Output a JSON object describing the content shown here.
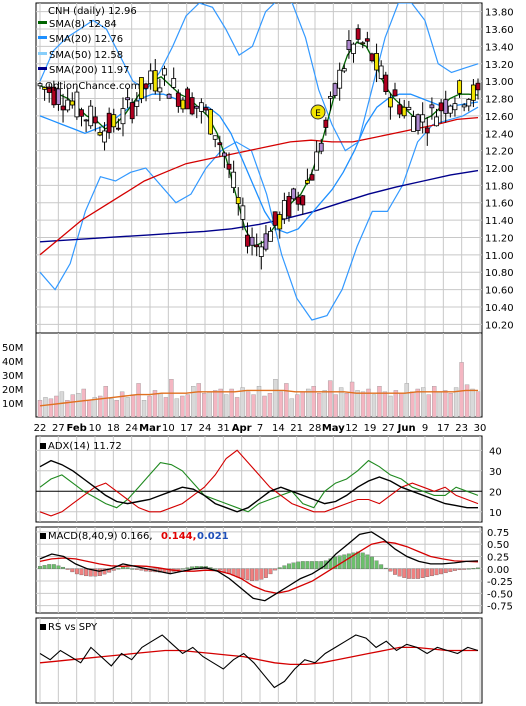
{
  "chart_data": [
    {
      "type": "candlestick",
      "title": "CNH (daily) 12.96",
      "watermark": "OptionChance.com",
      "legend": [
        {
          "label": "SMA(8) 12.84",
          "color": "#006400"
        },
        {
          "label": "SMA(20) 12.76",
          "color": "#1e90ff"
        },
        {
          "label": "SMA(50) 12.58",
          "color": "#87cefa"
        },
        {
          "label": "SMA(200) 11.97",
          "color": "#00008b"
        }
      ],
      "y_ticks": [
        "13.80",
        "13.60",
        "13.40",
        "13.20",
        "13.00",
        "12.80",
        "12.60",
        "12.40",
        "12.20",
        "12.00",
        "11.80",
        "11.60",
        "11.40",
        "11.20",
        "11.00",
        "10.80",
        "10.60",
        "10.40",
        "10.20"
      ],
      "ylim": [
        10.1,
        13.9
      ],
      "earnings_marker": "E",
      "sma8": [
        12.95,
        12.9,
        12.85,
        12.8,
        12.7,
        12.6,
        12.55,
        12.45,
        12.5,
        12.6,
        12.75,
        12.9,
        13.0,
        13.05,
        12.95,
        12.85,
        12.8,
        12.7,
        12.6,
        12.4,
        12.1,
        11.7,
        11.3,
        11.1,
        11.15,
        11.3,
        11.45,
        11.6,
        11.7,
        11.9,
        12.2,
        12.6,
        13.0,
        13.3,
        13.45,
        13.4,
        13.2,
        12.95,
        12.8,
        12.7,
        12.6,
        12.55,
        12.6,
        12.7,
        12.8,
        12.85,
        12.85,
        12.84
      ],
      "sma20": [
        12.6,
        12.55,
        12.5,
        12.45,
        12.4,
        12.45,
        12.5,
        12.6,
        12.7,
        12.8,
        12.85,
        12.85,
        12.8,
        12.75,
        12.7,
        12.7,
        12.6,
        12.4,
        12.1,
        11.8,
        11.5,
        11.3,
        11.25,
        11.3,
        11.45,
        11.6,
        11.75,
        11.95,
        12.2,
        12.5,
        12.7,
        12.8,
        12.85,
        12.85,
        12.8,
        12.75,
        12.7,
        12.72,
        12.74,
        12.76
      ],
      "sma50": [
        11.0,
        11.2,
        11.4,
        11.55,
        11.7,
        11.85,
        11.95,
        12.05,
        12.1,
        12.15,
        12.2,
        12.25,
        12.3,
        12.32,
        12.3,
        12.3,
        12.35,
        12.4,
        12.45,
        12.5,
        12.56,
        12.58
      ],
      "sma200": [
        11.15,
        11.17,
        11.19,
        11.21,
        11.23,
        11.25,
        11.27,
        11.3,
        11.35,
        11.42,
        11.5,
        11.6,
        11.7,
        11.78,
        11.85,
        11.92,
        11.97
      ],
      "bb_upper": [
        13.0,
        13.35,
        13.5,
        13.6,
        13.7,
        13.6,
        13.3,
        13.0,
        12.9,
        13.1,
        13.4,
        13.75,
        13.9,
        13.85,
        13.6,
        13.3,
        13.4,
        13.8,
        13.95,
        13.9,
        13.5,
        12.9,
        12.5,
        12.2,
        12.3,
        12.9,
        13.5,
        13.9,
        13.9,
        13.7,
        13.2,
        13.1,
        13.15,
        13.2
      ],
      "bb_lower": [
        10.8,
        10.6,
        10.9,
        11.5,
        11.9,
        11.85,
        11.95,
        12.0,
        11.8,
        11.6,
        11.7,
        12.0,
        12.2,
        12.3,
        12.2,
        11.7,
        11.0,
        10.5,
        10.25,
        10.3,
        10.6,
        11.1,
        11.5,
        11.5,
        11.8,
        12.3,
        12.5,
        12.55,
        12.6,
        12.7
      ]
    },
    {
      "type": "bar",
      "name": "Volume",
      "y_ticks": [
        "50M",
        "40M",
        "30M",
        "20M",
        "10M"
      ],
      "ylim": [
        0,
        60
      ],
      "values": [
        12,
        14,
        13,
        15,
        18,
        12,
        16,
        17,
        20,
        12,
        14,
        15,
        22,
        13,
        12,
        18,
        14,
        16,
        24,
        12,
        15,
        19,
        17,
        14,
        27,
        13,
        15,
        16,
        22,
        24,
        17,
        18,
        19,
        20,
        16,
        20,
        14,
        21,
        18,
        16,
        22,
        15,
        17,
        27,
        18,
        24,
        13,
        16,
        18,
        20,
        22,
        17,
        19,
        26,
        16,
        21,
        17,
        25,
        19,
        18,
        20,
        16,
        22,
        18,
        15,
        19,
        17,
        24,
        18,
        20,
        21,
        16,
        22,
        18,
        19,
        17,
        21,
        39,
        23,
        20,
        18
      ],
      "avg": [
        8,
        9,
        10,
        11,
        12,
        13,
        14,
        15,
        16,
        16,
        17,
        17,
        17,
        18,
        18,
        18,
        18,
        19,
        19,
        19,
        19,
        18,
        18,
        18,
        18,
        18,
        17,
        17,
        17,
        17,
        17,
        18,
        18,
        18,
        18,
        19,
        19
      ]
    },
    {
      "type": "line",
      "name": "ADX(14) 11.72",
      "y_ticks": [
        "40",
        "30",
        "20",
        "10"
      ],
      "ylim": [
        5,
        47
      ],
      "adx": [
        32,
        35,
        33,
        30,
        26,
        22,
        18,
        15,
        14,
        15,
        16,
        18,
        20,
        22,
        21,
        18,
        14,
        12,
        10,
        12,
        16,
        20,
        22,
        20,
        18,
        16,
        14,
        15,
        18,
        22,
        25,
        27,
        25,
        22,
        20,
        18,
        16,
        14,
        13,
        12,
        12
      ],
      "plus_di": [
        22,
        26,
        28,
        24,
        20,
        17,
        14,
        12,
        16,
        22,
        28,
        34,
        33,
        30,
        24,
        18,
        16,
        14,
        12,
        10,
        14,
        16,
        18,
        20,
        14,
        12,
        20,
        24,
        26,
        30,
        35,
        32,
        28,
        26,
        22,
        20,
        18,
        18,
        22,
        20,
        18
      ],
      "minus_di": [
        10,
        8,
        10,
        14,
        18,
        22,
        24,
        20,
        16,
        12,
        10,
        10,
        12,
        14,
        18,
        22,
        28,
        36,
        40,
        34,
        28,
        22,
        18,
        14,
        12,
        10,
        10,
        12,
        14,
        16,
        16,
        14,
        18,
        22,
        24,
        22,
        20,
        22,
        18,
        16,
        14
      ]
    },
    {
      "type": "line",
      "name": "MACD(8,40,9) 0.166,",
      "signal_label": "0.144,",
      "hist_label": "0.021",
      "y_ticks": [
        "0.75",
        "0.50",
        "0.25",
        "0.00",
        "-0.25",
        "-0.50",
        "-0.75"
      ],
      "ylim": [
        -0.9,
        0.85
      ],
      "macd": [
        0.2,
        0.3,
        0.25,
        0.1,
        0.0,
        -0.05,
        0.0,
        0.1,
        0.05,
        0.0,
        -0.05,
        -0.1,
        -0.05,
        0.0,
        0.02,
        -0.05,
        -0.2,
        -0.4,
        -0.6,
        -0.65,
        -0.5,
        -0.35,
        -0.2,
        -0.1,
        0.05,
        0.3,
        0.5,
        0.7,
        0.75,
        0.6,
        0.4,
        0.25,
        0.15,
        0.1,
        0.1,
        0.12,
        0.15,
        0.16
      ],
      "signal": [
        0.15,
        0.2,
        0.22,
        0.2,
        0.15,
        0.1,
        0.06,
        0.05,
        0.06,
        0.05,
        0.02,
        -0.02,
        -0.05,
        -0.05,
        -0.03,
        -0.04,
        -0.1,
        -0.2,
        -0.35,
        -0.45,
        -0.5,
        -0.45,
        -0.35,
        -0.25,
        -0.1,
        0.05,
        0.2,
        0.35,
        0.5,
        0.55,
        0.52,
        0.45,
        0.35,
        0.25,
        0.2,
        0.16,
        0.15,
        0.14
      ]
    },
    {
      "type": "line",
      "name": "RS vs SPY",
      "rs": [
        62,
        58,
        64,
        60,
        56,
        66,
        60,
        54,
        62,
        58,
        66,
        70,
        74,
        68,
        62,
        66,
        60,
        56,
        52,
        58,
        62,
        56,
        48,
        40,
        44,
        52,
        58,
        56,
        62,
        66,
        70,
        74,
        72,
        66,
        70,
        64,
        68,
        66,
        62,
        66,
        64,
        62,
        66,
        64
      ],
      "rs_ma": [
        56,
        57,
        58,
        59,
        60,
        61,
        62,
        63,
        64,
        64,
        63,
        62,
        61,
        60,
        58,
        56,
        55,
        55,
        56,
        58,
        60,
        62,
        64,
        66,
        66,
        65,
        64,
        64,
        64
      ]
    }
  ],
  "x_axis_labels": [
    "22",
    "27",
    "Feb",
    "10",
    "18",
    "24",
    "Mar",
    "10",
    "17",
    "24",
    "31",
    "Apr",
    "7",
    "14",
    "21",
    "28",
    "May",
    "12",
    "19",
    "27",
    "Jun",
    "9",
    "17",
    "23",
    "30"
  ]
}
